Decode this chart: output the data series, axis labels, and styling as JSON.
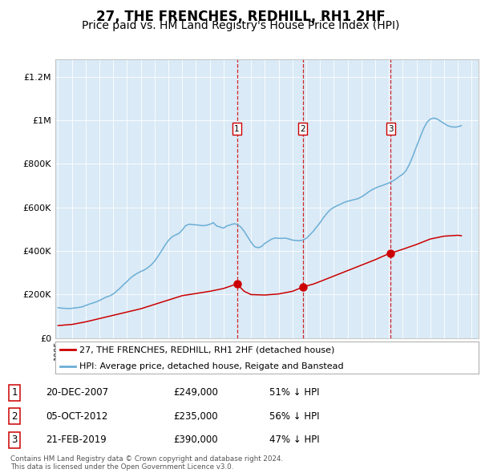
{
  "title": "27, THE FRENCHES, REDHILL, RH1 2HF",
  "subtitle": "Price paid vs. HM Land Registry's House Price Index (HPI)",
  "title_fontsize": 12,
  "subtitle_fontsize": 10,
  "background_color": "#ffffff",
  "plot_bg_color": "#daeaf6",
  "ylabel_ticks": [
    "£0",
    "£200K",
    "£400K",
    "£600K",
    "£800K",
    "£1M",
    "£1.2M"
  ],
  "ytick_values": [
    0,
    200000,
    400000,
    600000,
    800000,
    1000000,
    1200000
  ],
  "ylim": [
    0,
    1280000
  ],
  "xlim_start": 1994.8,
  "xlim_end": 2025.5,
  "transactions": [
    {
      "date": 2007.97,
      "price": 249000,
      "label": "1"
    },
    {
      "date": 2012.76,
      "price": 235000,
      "label": "2"
    },
    {
      "date": 2019.13,
      "price": 390000,
      "label": "3"
    }
  ],
  "transaction_color": "#cc0000",
  "vline_color": "#cc0000",
  "hpi_color": "#6baed6",
  "property_color": "#cc0000",
  "legend_label_property": "27, THE FRENCHES, REDHILL, RH1 2HF (detached house)",
  "legend_label_hpi": "HPI: Average price, detached house, Reigate and Banstead",
  "table_rows": [
    {
      "num": "1",
      "date": "20-DEC-2007",
      "price": "£249,000",
      "pct": "51% ↓ HPI"
    },
    {
      "num": "2",
      "date": "05-OCT-2012",
      "price": "£235,000",
      "pct": "56% ↓ HPI"
    },
    {
      "num": "3",
      "date": "21-FEB-2019",
      "price": "£390,000",
      "pct": "47% ↓ HPI"
    }
  ],
  "footer": "Contains HM Land Registry data © Crown copyright and database right 2024.\nThis data is licensed under the Open Government Licence v3.0.",
  "hpi_years": [
    1995.0,
    1995.25,
    1995.5,
    1995.75,
    1996.0,
    1996.25,
    1996.5,
    1996.75,
    1997.0,
    1997.25,
    1997.5,
    1997.75,
    1998.0,
    1998.25,
    1998.5,
    1998.75,
    1999.0,
    1999.25,
    1999.5,
    1999.75,
    2000.0,
    2000.25,
    2000.5,
    2000.75,
    2001.0,
    2001.25,
    2001.5,
    2001.75,
    2002.0,
    2002.25,
    2002.5,
    2002.75,
    2003.0,
    2003.25,
    2003.5,
    2003.75,
    2004.0,
    2004.25,
    2004.5,
    2004.75,
    2005.0,
    2005.25,
    2005.5,
    2005.75,
    2006.0,
    2006.25,
    2006.5,
    2006.75,
    2007.0,
    2007.25,
    2007.5,
    2007.75,
    2008.0,
    2008.25,
    2008.5,
    2008.75,
    2009.0,
    2009.25,
    2009.5,
    2009.75,
    2010.0,
    2010.25,
    2010.5,
    2010.75,
    2011.0,
    2011.25,
    2011.5,
    2011.75,
    2012.0,
    2012.25,
    2012.5,
    2012.75,
    2013.0,
    2013.25,
    2013.5,
    2013.75,
    2014.0,
    2014.25,
    2014.5,
    2014.75,
    2015.0,
    2015.25,
    2015.5,
    2015.75,
    2016.0,
    2016.25,
    2016.5,
    2016.75,
    2017.0,
    2017.25,
    2017.5,
    2017.75,
    2018.0,
    2018.25,
    2018.5,
    2018.75,
    2019.0,
    2019.25,
    2019.5,
    2019.75,
    2020.0,
    2020.25,
    2020.5,
    2020.75,
    2021.0,
    2021.25,
    2021.5,
    2021.75,
    2022.0,
    2022.25,
    2022.5,
    2022.75,
    2023.0,
    2023.25,
    2023.5,
    2023.75,
    2024.0,
    2024.25
  ],
  "hpi_values": [
    140000,
    138000,
    137000,
    136000,
    137000,
    139000,
    141000,
    144000,
    150000,
    156000,
    161000,
    166000,
    173000,
    181000,
    189000,
    194000,
    203000,
    216000,
    230000,
    246000,
    260000,
    276000,
    288000,
    298000,
    306000,
    313000,
    323000,
    336000,
    353000,
    376000,
    400000,
    426000,
    448000,
    464000,
    473000,
    480000,
    496000,
    516000,
    523000,
    521000,
    520000,
    518000,
    516000,
    518000,
    522000,
    530000,
    515000,
    510000,
    505000,
    515000,
    520000,
    525000,
    522000,
    510000,
    490000,
    465000,
    440000,
    420000,
    415000,
    420000,
    435000,
    445000,
    455000,
    460000,
    458000,
    458000,
    459000,
    455000,
    450000,
    448000,
    447000,
    450000,
    458000,
    473000,
    490000,
    510000,
    530000,
    553000,
    573000,
    590000,
    600000,
    608000,
    615000,
    623000,
    628000,
    632000,
    636000,
    640000,
    648000,
    658000,
    670000,
    680000,
    688000,
    695000,
    700000,
    706000,
    712000,
    720000,
    730000,
    742000,
    752000,
    770000,
    800000,
    838000,
    880000,
    920000,
    960000,
    990000,
    1005000,
    1010000,
    1005000,
    995000,
    985000,
    975000,
    970000,
    968000,
    970000,
    975000
  ],
  "property_years": [
    1995.0,
    1996.0,
    1997.0,
    1998.0,
    1999.0,
    2000.0,
    2001.0,
    2002.0,
    2003.0,
    2004.0,
    2005.0,
    2006.0,
    2007.0,
    2007.97,
    2008.5,
    2009.0,
    2010.0,
    2011.0,
    2012.0,
    2012.76,
    2013.5,
    2014.0,
    2015.0,
    2016.0,
    2017.0,
    2018.0,
    2019.0,
    2019.13,
    2020.0,
    2021.0,
    2022.0,
    2023.0,
    2024.0,
    2024.25
  ],
  "property_values": [
    58000,
    63000,
    75000,
    90000,
    105000,
    120000,
    135000,
    155000,
    175000,
    195000,
    205000,
    215000,
    228000,
    249000,
    215000,
    200000,
    198000,
    203000,
    215000,
    235000,
    248000,
    260000,
    285000,
    310000,
    335000,
    360000,
    388000,
    390000,
    408000,
    430000,
    455000,
    468000,
    472000,
    470000
  ]
}
